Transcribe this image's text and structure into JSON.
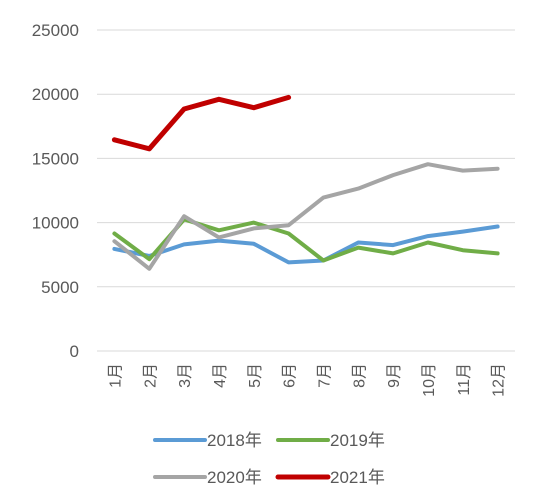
{
  "chart_data": {
    "type": "line",
    "title": "",
    "xlabel": "",
    "ylabel": "",
    "categories": [
      "1月",
      "2月",
      "3月",
      "4月",
      "5月",
      "6月",
      "7月",
      "8月",
      "9月",
      "10月",
      "11月",
      "12月"
    ],
    "y_ticks": [
      "0",
      "5000",
      "10000",
      "15000",
      "20000",
      "25000"
    ],
    "ylim": [
      0,
      25000
    ],
    "grid": "horizontal",
    "legend_position": "bottom",
    "series": [
      {
        "name": "2018年",
        "color": "#5b9bd5",
        "values": [
          7950,
          7400,
          8300,
          8600,
          8350,
          6900,
          7050,
          8450,
          8250,
          8950,
          9300,
          9700
        ]
      },
      {
        "name": "2019年",
        "color": "#70ad47",
        "values": [
          9150,
          7150,
          10250,
          9400,
          10000,
          9150,
          7050,
          8050,
          7600,
          8450,
          7850,
          7600
        ]
      },
      {
        "name": "2020年",
        "color": "#a5a5a5",
        "values": [
          8550,
          6400,
          10500,
          8850,
          9550,
          9800,
          11950,
          12650,
          13700,
          14550,
          14050,
          14200
        ]
      },
      {
        "name": "2021年",
        "color": "#c00000",
        "values": [
          16450,
          15750,
          18850,
          19600,
          18950,
          19750,
          null,
          null,
          null,
          null,
          null,
          null
        ]
      }
    ]
  }
}
